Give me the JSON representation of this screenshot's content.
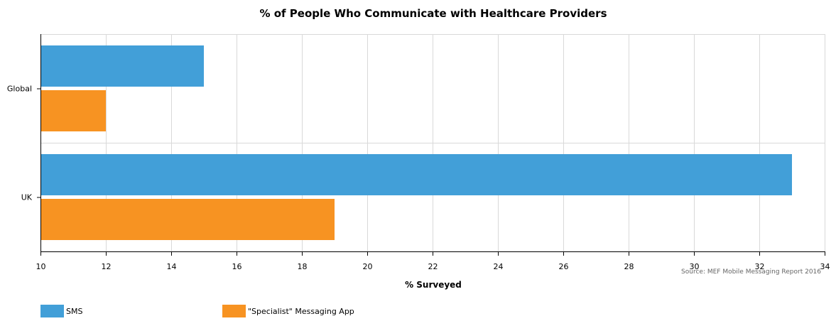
{
  "chart_data": {
    "type": "bar",
    "orientation": "horizontal",
    "title": "% of People Who Communicate with Healthcare Providers",
    "xlabel": "% Surveyed",
    "ylabel": "",
    "categories": [
      "Global",
      "UK"
    ],
    "series": [
      {
        "name": "SMS",
        "values": [
          15,
          33
        ],
        "color": "#429fd8"
      },
      {
        "name": "\"Specialist\" Messaging App",
        "values": [
          12,
          19
        ],
        "color": "#f79322"
      }
    ],
    "xlim": [
      10,
      34
    ],
    "xticks": [
      10,
      12,
      14,
      16,
      18,
      20,
      22,
      24,
      26,
      28,
      30,
      32,
      34
    ],
    "grid": true,
    "legend_position": "bottom-left",
    "source": "Source: MEF Mobile Messaging Report 2016"
  }
}
